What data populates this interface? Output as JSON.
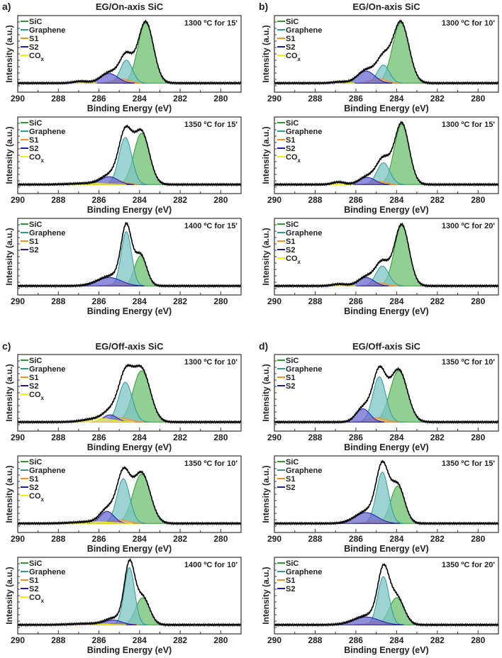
{
  "colors": {
    "SiC": "#2e9b2e",
    "Graphene": "#2a9a9a",
    "S1": "#ff8c1a",
    "S2": "#1c1caa",
    "COx": "#f5f000",
    "envelope": "#000000"
  },
  "fill_colors": {
    "SiC": "#6dbf6d",
    "Graphene": "#7cc4c4",
    "S1": "#f0b070",
    "S2": "#6a6ad0",
    "COx": "#f5f07a"
  },
  "chart_data": [
    {
      "panel": "a)",
      "title": "EG/On-axis SiC",
      "type": "area",
      "xlabel": "Binding Energy (eV)",
      "ylabel": "Intensity (a.u.)",
      "xlim": [
        290,
        279
      ],
      "xticks": [
        290,
        288,
        286,
        284,
        282,
        280
      ],
      "ylim": [
        -0.15,
        1.12
      ],
      "legend_position": "top-left",
      "plots": [
        {
          "annotation": "1300 ºC for 15'",
          "components": [
            {
              "name": "SiC",
              "center": 283.7,
              "height": 1.0,
              "fwhm": 0.9
            },
            {
              "name": "Graphene",
              "center": 284.65,
              "height": 0.38,
              "fwhm": 0.7
            },
            {
              "name": "S1",
              "center": 284.9,
              "height": 0.07,
              "fwhm": 0.9
            },
            {
              "name": "S2",
              "center": 285.5,
              "height": 0.16,
              "fwhm": 1.0
            },
            {
              "name": "COx",
              "center": 286.9,
              "height": 0.03,
              "fwhm": 0.8
            }
          ]
        },
        {
          "annotation": "1350 ºC for 15'",
          "components": [
            {
              "name": "SiC",
              "center": 283.9,
              "height": 0.85,
              "fwhm": 0.9
            },
            {
              "name": "Graphene",
              "center": 284.7,
              "height": 0.78,
              "fwhm": 0.75
            },
            {
              "name": "S1",
              "center": 285.0,
              "height": 0.05,
              "fwhm": 0.9
            },
            {
              "name": "S2",
              "center": 285.5,
              "height": 0.13,
              "fwhm": 1.0
            },
            {
              "name": "COx",
              "center": 286.5,
              "height": 0.02,
              "fwhm": 2.0
            }
          ]
        },
        {
          "annotation": "1400 ºC for 15'",
          "components": [
            {
              "name": "SiC",
              "center": 283.95,
              "height": 0.5,
              "fwhm": 0.7
            },
            {
              "name": "Graphene",
              "center": 284.65,
              "height": 0.9,
              "fwhm": 0.6
            },
            {
              "name": "S1",
              "center": 285.0,
              "height": 0.05,
              "fwhm": 1.0
            },
            {
              "name": "S2",
              "center": 285.5,
              "height": 0.14,
              "fwhm": 1.4
            }
          ]
        }
      ]
    },
    {
      "panel": "b)",
      "title": "EG/On-axis SiC",
      "type": "area",
      "xlabel": "Binding Energy (eV)",
      "ylabel": "Intensity (a.u.)",
      "xlim": [
        290,
        279
      ],
      "xticks": [
        290,
        288,
        286,
        284,
        282,
        280
      ],
      "ylim": [
        -0.15,
        1.12
      ],
      "legend_position": "top-left",
      "plots": [
        {
          "annotation": "1300 ºC for 10'",
          "components": [
            {
              "name": "SiC",
              "center": 283.8,
              "height": 1.0,
              "fwhm": 0.95
            },
            {
              "name": "Graphene",
              "center": 284.65,
              "height": 0.3,
              "fwhm": 0.7
            },
            {
              "name": "S1",
              "center": 284.9,
              "height": 0.08,
              "fwhm": 0.9
            },
            {
              "name": "S2",
              "center": 285.5,
              "height": 0.2,
              "fwhm": 1.0
            },
            {
              "name": "COx",
              "center": 286.8,
              "height": 0.02,
              "fwhm": 0.8
            }
          ]
        },
        {
          "annotation": "1300 ºC for 15'",
          "components": [
            {
              "name": "SiC",
              "center": 283.75,
              "height": 1.0,
              "fwhm": 0.85
            },
            {
              "name": "Graphene",
              "center": 284.65,
              "height": 0.36,
              "fwhm": 0.75
            },
            {
              "name": "S1",
              "center": 284.9,
              "height": 0.05,
              "fwhm": 0.9
            },
            {
              "name": "S2",
              "center": 285.45,
              "height": 0.12,
              "fwhm": 0.9
            },
            {
              "name": "COx",
              "center": 286.85,
              "height": 0.04,
              "fwhm": 0.7
            }
          ]
        },
        {
          "annotation": "1300 ºC for 20'",
          "components": [
            {
              "name": "SiC",
              "center": 283.75,
              "height": 1.0,
              "fwhm": 0.85
            },
            {
              "name": "Graphene",
              "center": 284.7,
              "height": 0.33,
              "fwhm": 0.75
            },
            {
              "name": "S1",
              "center": 284.9,
              "height": 0.05,
              "fwhm": 0.9
            },
            {
              "name": "S2",
              "center": 285.5,
              "height": 0.14,
              "fwhm": 0.9
            },
            {
              "name": "COx",
              "center": 286.8,
              "height": 0.03,
              "fwhm": 0.8
            }
          ]
        }
      ]
    },
    {
      "panel": "c)",
      "title": "EG/Off-axis SiC",
      "type": "area",
      "xlabel": "Binding Energy (eV)",
      "ylabel": "Intensity (a.u.)",
      "xlim": [
        290,
        279
      ],
      "xticks": [
        290,
        288,
        286,
        284,
        282,
        280
      ],
      "ylim": [
        -0.15,
        1.12
      ],
      "legend_position": "top-left",
      "plots": [
        {
          "annotation": "1300 ºC for 10'",
          "components": [
            {
              "name": "SiC",
              "center": 283.9,
              "height": 0.85,
              "fwhm": 1.0
            },
            {
              "name": "Graphene",
              "center": 284.7,
              "height": 0.66,
              "fwhm": 0.8
            },
            {
              "name": "S1",
              "center": 284.9,
              "height": 0.07,
              "fwhm": 1.0
            },
            {
              "name": "S2",
              "center": 285.45,
              "height": 0.12,
              "fwhm": 0.8
            },
            {
              "name": "COx",
              "center": 286.0,
              "height": 0.06,
              "fwhm": 1.6
            }
          ]
        },
        {
          "annotation": "1350 ºC for 10'",
          "components": [
            {
              "name": "SiC",
              "center": 283.9,
              "height": 0.82,
              "fwhm": 1.0
            },
            {
              "name": "Graphene",
              "center": 284.8,
              "height": 0.74,
              "fwhm": 0.75
            },
            {
              "name": "S1",
              "center": 285.0,
              "height": 0.06,
              "fwhm": 1.0
            },
            {
              "name": "S2",
              "center": 285.6,
              "height": 0.2,
              "fwhm": 0.8
            },
            {
              "name": "COx",
              "center": 286.3,
              "height": 0.03,
              "fwhm": 2.0
            }
          ]
        },
        {
          "annotation": "1400 ºC for 10'",
          "components": [
            {
              "name": "SiC",
              "center": 283.85,
              "height": 0.45,
              "fwhm": 0.8
            },
            {
              "name": "Graphene",
              "center": 284.5,
              "height": 0.95,
              "fwhm": 0.6
            },
            {
              "name": "S1",
              "center": 285.0,
              "height": 0.03,
              "fwhm": 1.0
            },
            {
              "name": "S2",
              "center": 285.3,
              "height": 0.08,
              "fwhm": 1.0
            },
            {
              "name": "COx",
              "center": 286.5,
              "height": 0.02,
              "fwhm": 2.0
            }
          ]
        }
      ]
    },
    {
      "panel": "d)",
      "title": "EG/Off-axis SiC",
      "type": "area",
      "xlabel": "Binding Energy (eV)",
      "ylabel": "Intensity (a.u.)",
      "xlim": [
        290,
        279
      ],
      "xticks": [
        290,
        288,
        286,
        284,
        282,
        280
      ],
      "ylim": [
        -0.15,
        1.12
      ],
      "legend_position": "top-left",
      "plots": [
        {
          "annotation": "1350 ºC for 10'",
          "components": [
            {
              "name": "SiC",
              "center": 283.9,
              "height": 0.85,
              "fwhm": 1.0
            },
            {
              "name": "Graphene",
              "center": 284.85,
              "height": 0.75,
              "fwhm": 0.75
            },
            {
              "name": "S1",
              "center": 285.0,
              "height": 0.07,
              "fwhm": 1.0
            },
            {
              "name": "S2",
              "center": 285.65,
              "height": 0.22,
              "fwhm": 0.8
            }
          ]
        },
        {
          "annotation": "1350 ºC for 15'",
          "components": [
            {
              "name": "SiC",
              "center": 283.95,
              "height": 0.62,
              "fwhm": 0.8
            },
            {
              "name": "Graphene",
              "center": 284.7,
              "height": 0.85,
              "fwhm": 0.7
            },
            {
              "name": "S1",
              "center": 285.0,
              "height": 0.05,
              "fwhm": 1.0
            },
            {
              "name": "S2",
              "center": 285.5,
              "height": 0.18,
              "fwhm": 1.3
            }
          ]
        },
        {
          "annotation": "1350 ºC for 20'",
          "components": [
            {
              "name": "SiC",
              "center": 284.0,
              "height": 0.45,
              "fwhm": 0.85
            },
            {
              "name": "Graphene",
              "center": 284.65,
              "height": 0.8,
              "fwhm": 0.65
            },
            {
              "name": "S1",
              "center": 285.0,
              "height": 0.05,
              "fwhm": 1.0
            },
            {
              "name": "S2",
              "center": 285.5,
              "height": 0.13,
              "fwhm": 1.5
            }
          ]
        }
      ]
    }
  ]
}
